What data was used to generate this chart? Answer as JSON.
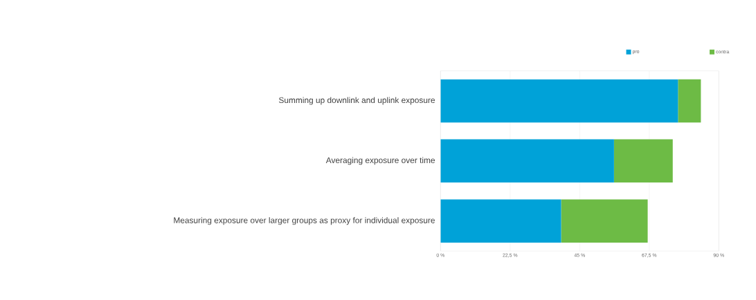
{
  "chart_data": {
    "type": "bar",
    "orientation": "horizontal",
    "stacked": true,
    "categories": [
      "Summing up downlink and uplink exposure",
      "Averaging exposure over time",
      "Measuring exposure over larger groups as proxy for individual exposure"
    ],
    "series": [
      {
        "name": "pro",
        "color": "#00a2d8",
        "values": [
          76.8,
          56.1,
          39.0
        ]
      },
      {
        "name": "contra",
        "color": "#6dbb45",
        "values": [
          7.4,
          19.0,
          28.0
        ]
      }
    ],
    "xlim": [
      0,
      90
    ],
    "xticks": [
      {
        "value": 0,
        "label": "0 %"
      },
      {
        "value": 22.5,
        "label": "22,5 %"
      },
      {
        "value": 45,
        "label": "45 %"
      },
      {
        "value": 67.5,
        "label": "67,5 %"
      },
      {
        "value": 90,
        "label": "90 %"
      }
    ],
    "grid": "x",
    "legend": "top right"
  }
}
